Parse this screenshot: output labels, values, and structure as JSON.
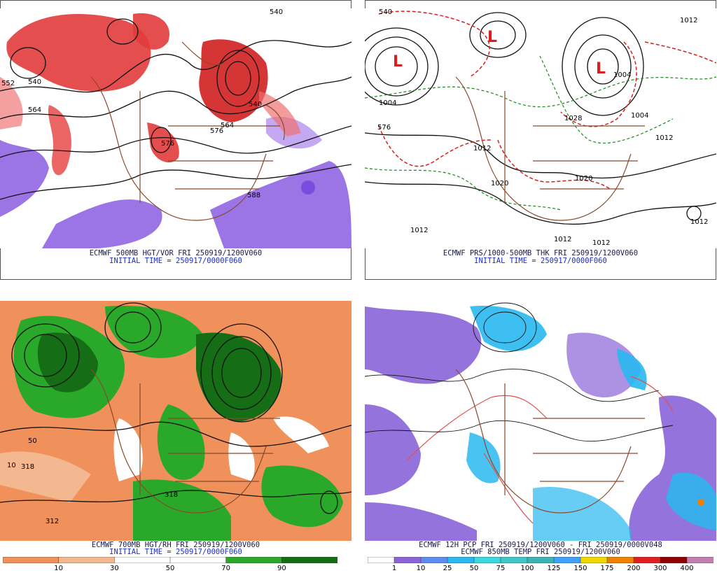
{
  "panels": [
    {
      "id": "tl",
      "caption_line1": "ECMWF 500MB HGT/VOR FRI 250919/1200V060",
      "caption_line2": "INITIAL TIME = 250917/0000F060",
      "labels": [
        "540",
        "552",
        "540",
        "564",
        "576",
        "576",
        "588",
        "540",
        "564"
      ]
    },
    {
      "id": "tr",
      "caption_line1": "ECMWF PRS/1000-500MB THK FRI 250919/1200V060",
      "caption_line2": "INITIAL TIME = 250917/0000F060",
      "labels": [
        "1004",
        "1004",
        "1012",
        "1012",
        "1020",
        "1028",
        "1012",
        "1012",
        "1004",
        "576",
        "540",
        "1012",
        "1020",
        "1012",
        "1012"
      ]
    },
    {
      "id": "bl",
      "caption_line1": "ECMWF 700MB HGT/RH FRI 250919/1200V060",
      "caption_line2": "INITIAL TIME = 250917/0000F060",
      "labels": [
        "318",
        "312",
        "318",
        "50",
        "10"
      ],
      "colorbar": {
        "ticks": [
          "10",
          "30",
          "50",
          "70",
          "90"
        ],
        "colors": [
          "#f0905a",
          "#f4b890",
          "#ffffff",
          "#ffffff",
          "#2aa82a",
          "#156e15"
        ]
      }
    },
    {
      "id": "br",
      "caption_line1": "ECMWF 12H PCP FRI 250919/1200V060 - FRI 250919/0000V048",
      "caption_line2": "ECMWF 850MB TEMP FRI 250919/1200V060",
      "labels": [],
      "colorbar": {
        "ticks": [
          "1",
          "10",
          "25",
          "50",
          "75",
          "100",
          "125",
          "150",
          "175",
          "200",
          "300",
          "400"
        ],
        "colors": [
          "#ffffff",
          "#8a64d8",
          "#5c8cf0",
          "#28b8f0",
          "#3cd8e0",
          "#40c8c8",
          "#3cb4b4",
          "#40a0ff",
          "#f0d800",
          "#f08000",
          "#e02020",
          "#900000",
          "#c080b0"
        ]
      }
    }
  ]
}
